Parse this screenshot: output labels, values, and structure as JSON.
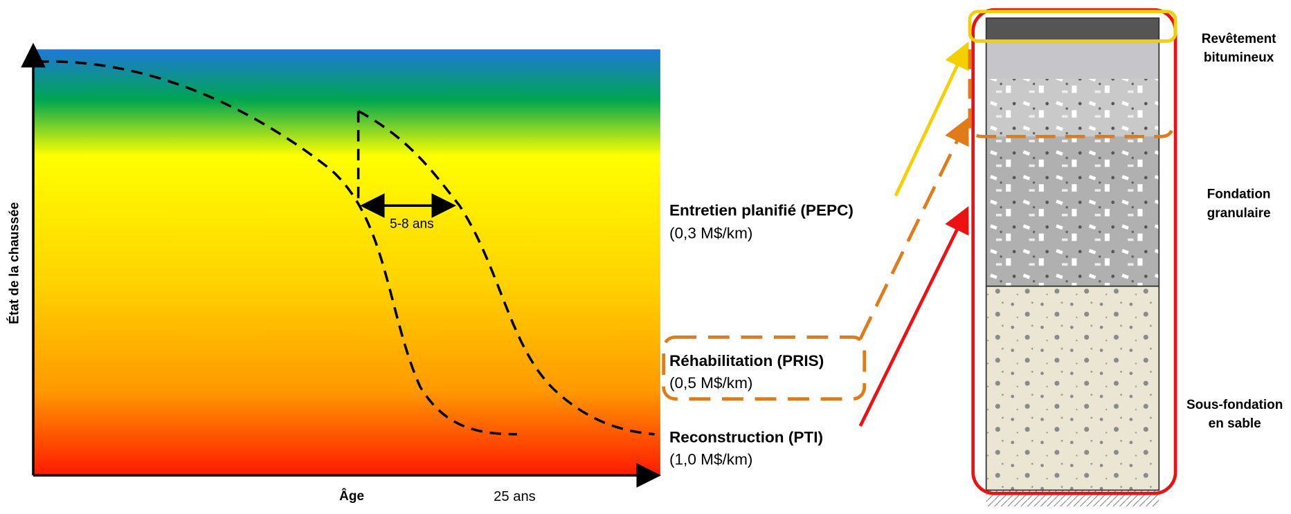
{
  "chart": {
    "y_axis_label": "État de la chaussée",
    "x_axis_label": "Âge",
    "x_mark_label": "25 ans",
    "interval_label": "5-8 ans"
  },
  "interventions": [
    {
      "name": "Entretien planifié (PEPC)",
      "cost": "(0,3 M$/km)"
    },
    {
      "name": "Réhabilitation (PRIS)",
      "cost": "(0,5 M$/km)"
    },
    {
      "name": "Reconstruction (PTI)",
      "cost": "(1,0 M$/km)"
    }
  ],
  "layers": [
    {
      "label": [
        "Revêtement",
        "bitumineux"
      ]
    },
    {
      "label": [
        "Fondation",
        "granulaire"
      ]
    },
    {
      "label": [
        "Sous-fondation",
        "en sable"
      ]
    }
  ]
}
